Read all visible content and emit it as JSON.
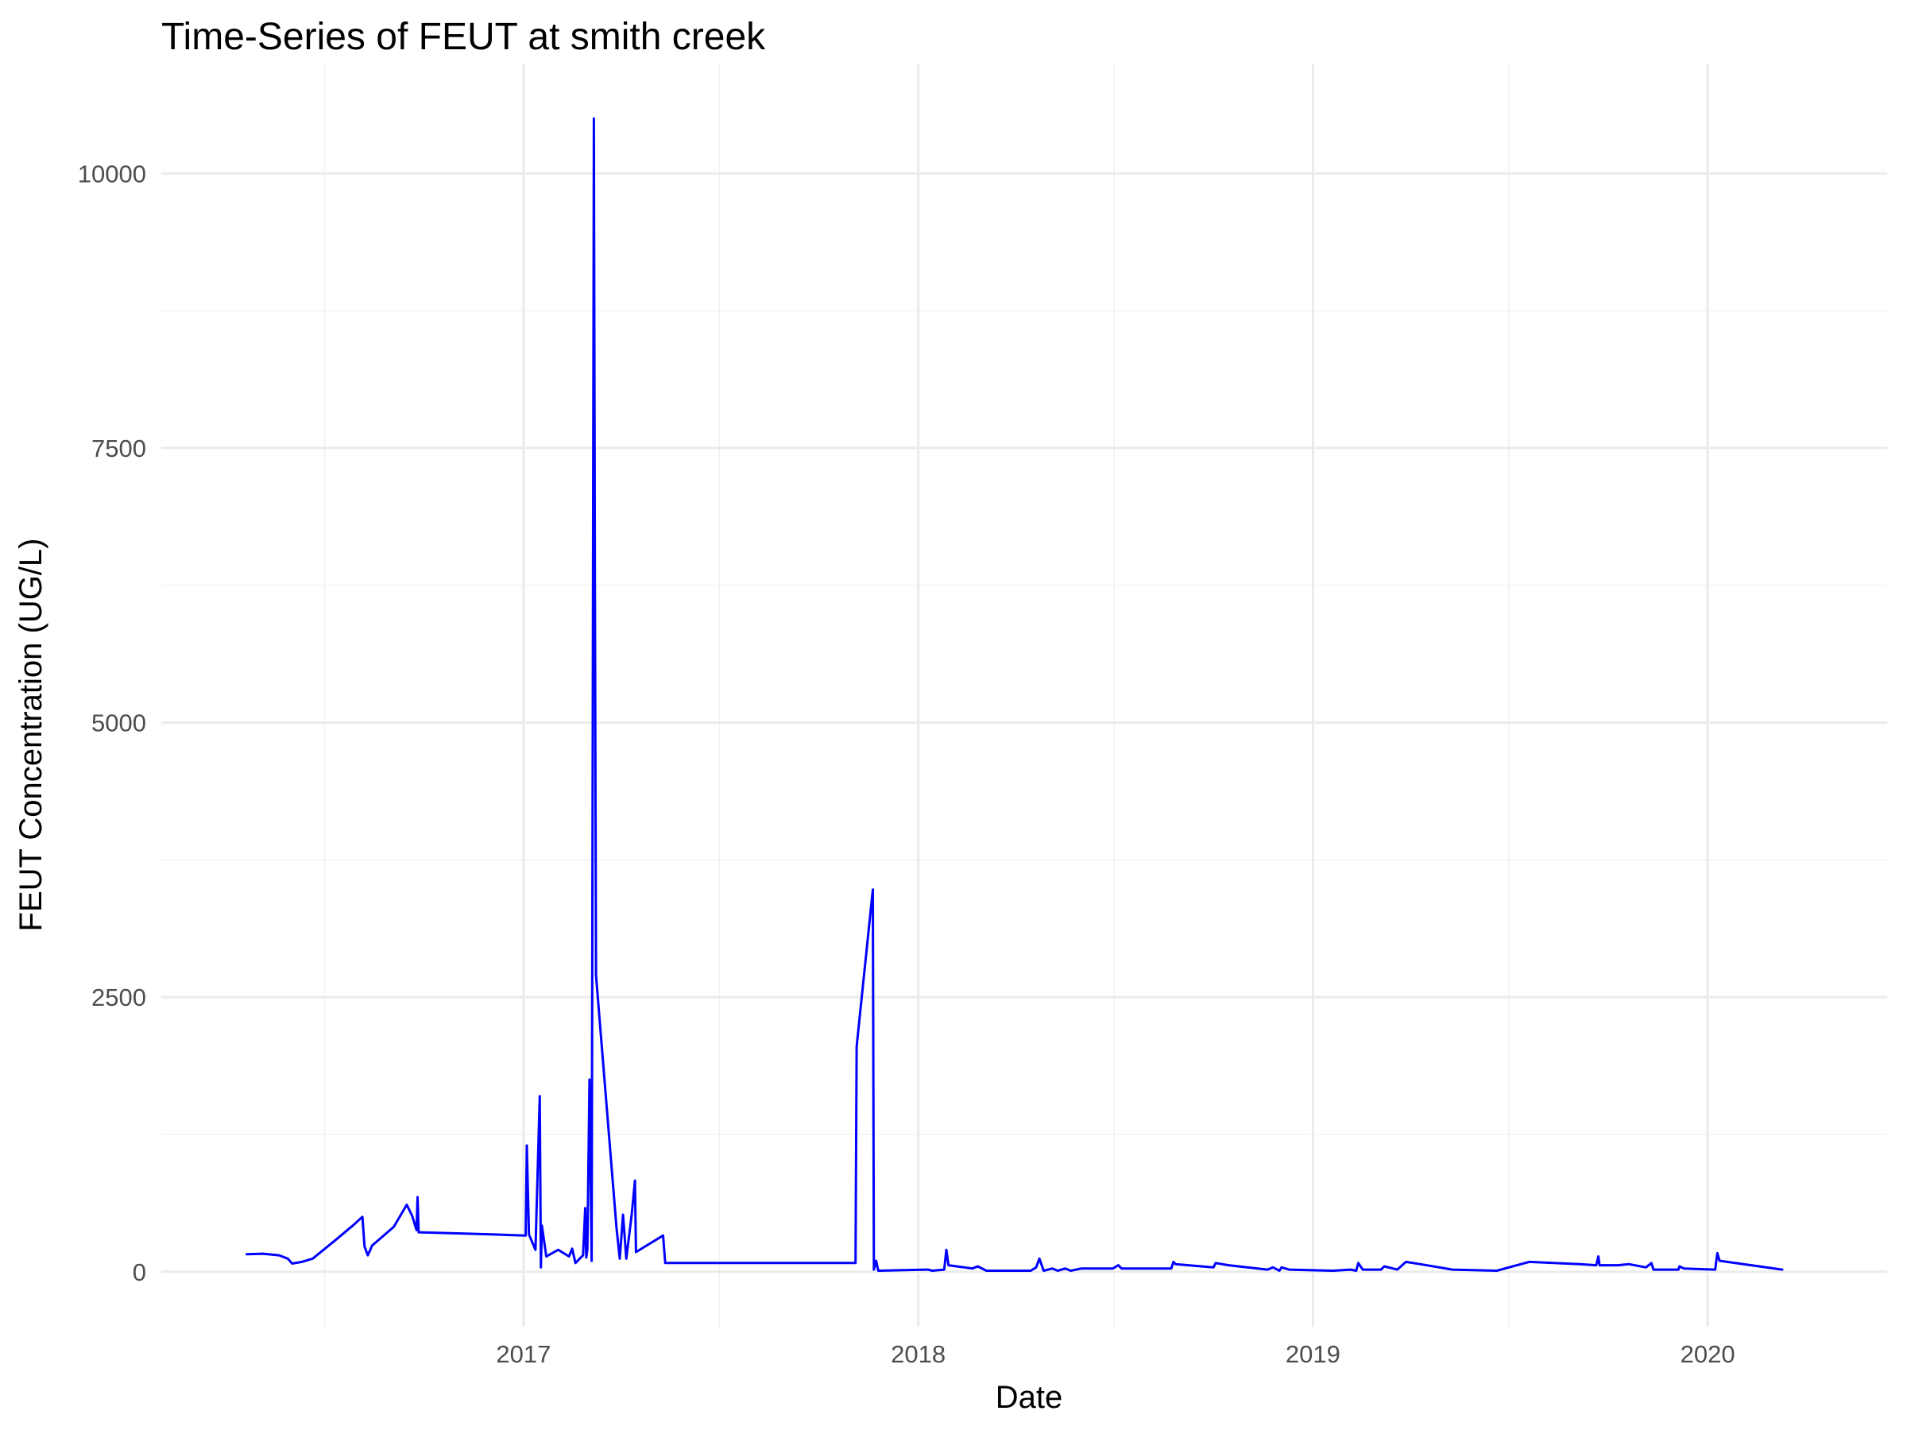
{
  "chart_data": {
    "type": "line",
    "title": "Time-Series of FEUT at smith creek",
    "xlabel": "Date",
    "ylabel": "FEUT Concentration (UG/L)",
    "x_ticks": [
      "2017",
      "2018",
      "2019",
      "2020"
    ],
    "y_ticks": [
      0,
      2500,
      5000,
      7500,
      10000
    ],
    "xlim": [
      "2016-02-01",
      "2020-06-15"
    ],
    "ylim": [
      -500,
      11000
    ],
    "grid": true,
    "legend": "none",
    "colors": {
      "line": "#0000ff",
      "grid_major": "#ebebeb",
      "grid_minor": "#f2f2f2",
      "tick_text": "#4d4d4d"
    },
    "series": [
      {
        "color": "#0000ff",
        "points": [
          [
            "2016-04-20",
            160
          ],
          [
            "2016-05-05",
            165
          ],
          [
            "2016-05-20",
            150
          ],
          [
            "2016-05-28",
            120
          ],
          [
            "2016-06-01",
            75
          ],
          [
            "2016-06-10",
            90
          ],
          [
            "2016-06-20",
            120
          ],
          [
            "2016-07-10",
            280
          ],
          [
            "2016-07-27",
            420
          ],
          [
            "2016-08-05",
            500
          ],
          [
            "2016-08-07",
            230
          ],
          [
            "2016-08-10",
            150
          ],
          [
            "2016-08-14",
            240
          ],
          [
            "2016-09-03",
            410
          ],
          [
            "2016-09-15",
            610
          ],
          [
            "2016-09-20",
            510
          ],
          [
            "2016-09-24",
            380
          ],
          [
            "2016-09-25",
            680
          ],
          [
            "2016-09-26",
            360
          ],
          [
            "2016-11-01",
            350
          ],
          [
            "2016-12-05",
            340
          ],
          [
            "2017-01-03",
            330
          ],
          [
            "2017-01-04",
            1150
          ],
          [
            "2017-01-06",
            340
          ],
          [
            "2017-01-12",
            200
          ],
          [
            "2017-01-16",
            1600
          ],
          [
            "2017-01-17",
            40
          ],
          [
            "2017-01-18",
            420
          ],
          [
            "2017-01-22",
            140
          ],
          [
            "2017-02-02",
            200
          ],
          [
            "2017-02-12",
            140
          ],
          [
            "2017-02-15",
            210
          ],
          [
            "2017-02-18",
            80
          ],
          [
            "2017-02-25",
            150
          ],
          [
            "2017-02-27",
            580
          ],
          [
            "2017-02-28",
            130
          ],
          [
            "2017-03-01",
            200
          ],
          [
            "2017-03-03",
            1750
          ],
          [
            "2017-03-05",
            100
          ],
          [
            "2017-03-06",
            5000
          ],
          [
            "2017-03-07",
            10500
          ],
          [
            "2017-03-08",
            6300
          ],
          [
            "2017-03-09",
            2700
          ],
          [
            "2017-03-28",
            400
          ],
          [
            "2017-03-31",
            120
          ],
          [
            "2017-04-03",
            520
          ],
          [
            "2017-04-06",
            120
          ],
          [
            "2017-04-11",
            520
          ],
          [
            "2017-04-14",
            830
          ],
          [
            "2017-04-15",
            180
          ],
          [
            "2017-05-10",
            330
          ],
          [
            "2017-05-12",
            80
          ],
          [
            "2017-07-01",
            80
          ],
          [
            "2017-09-01",
            80
          ],
          [
            "2017-11-04",
            80
          ],
          [
            "2017-11-05",
            2050
          ],
          [
            "2017-11-20",
            3480
          ],
          [
            "2017-11-21",
            20
          ],
          [
            "2017-11-23",
            100
          ],
          [
            "2017-11-25",
            10
          ],
          [
            "2018-01-10",
            20
          ],
          [
            "2018-01-14",
            10
          ],
          [
            "2018-01-25",
            20
          ],
          [
            "2018-01-27",
            200
          ],
          [
            "2018-01-29",
            60
          ],
          [
            "2018-02-20",
            30
          ],
          [
            "2018-02-25",
            50
          ],
          [
            "2018-03-05",
            10
          ],
          [
            "2018-04-15",
            10
          ],
          [
            "2018-04-20",
            40
          ],
          [
            "2018-04-23",
            120
          ],
          [
            "2018-04-27",
            10
          ],
          [
            "2018-05-05",
            30
          ],
          [
            "2018-05-10",
            10
          ],
          [
            "2018-05-17",
            30
          ],
          [
            "2018-05-22",
            10
          ],
          [
            "2018-06-01",
            30
          ],
          [
            "2018-06-30",
            30
          ],
          [
            "2018-07-05",
            60
          ],
          [
            "2018-07-08",
            30
          ],
          [
            "2018-08-23",
            30
          ],
          [
            "2018-08-25",
            90
          ],
          [
            "2018-08-27",
            70
          ],
          [
            "2018-10-01",
            40
          ],
          [
            "2018-10-03",
            80
          ],
          [
            "2018-10-15",
            60
          ],
          [
            "2018-11-20",
            20
          ],
          [
            "2018-11-25",
            40
          ],
          [
            "2018-12-01",
            10
          ],
          [
            "2018-12-03",
            40
          ],
          [
            "2018-12-10",
            20
          ],
          [
            "2019-01-20",
            10
          ],
          [
            "2019-02-05",
            20
          ],
          [
            "2019-02-10",
            10
          ],
          [
            "2019-02-12",
            80
          ],
          [
            "2019-02-16",
            20
          ],
          [
            "2019-03-05",
            20
          ],
          [
            "2019-03-08",
            50
          ],
          [
            "2019-03-20",
            20
          ],
          [
            "2019-03-28",
            90
          ],
          [
            "2019-04-10",
            70
          ],
          [
            "2019-05-10",
            20
          ],
          [
            "2019-06-20",
            10
          ],
          [
            "2019-07-20",
            90
          ],
          [
            "2019-09-05",
            70
          ],
          [
            "2019-09-20",
            60
          ],
          [
            "2019-09-22",
            140
          ],
          [
            "2019-09-23",
            60
          ],
          [
            "2019-10-10",
            60
          ],
          [
            "2019-10-20",
            70
          ],
          [
            "2019-11-05",
            40
          ],
          [
            "2019-11-10",
            80
          ],
          [
            "2019-11-12",
            20
          ],
          [
            "2019-12-05",
            20
          ],
          [
            "2019-12-06",
            50
          ],
          [
            "2019-12-10",
            30
          ],
          [
            "2020-01-08",
            20
          ],
          [
            "2020-01-10",
            170
          ],
          [
            "2020-01-12",
            100
          ],
          [
            "2020-03-10",
            20
          ]
        ]
      }
    ]
  }
}
